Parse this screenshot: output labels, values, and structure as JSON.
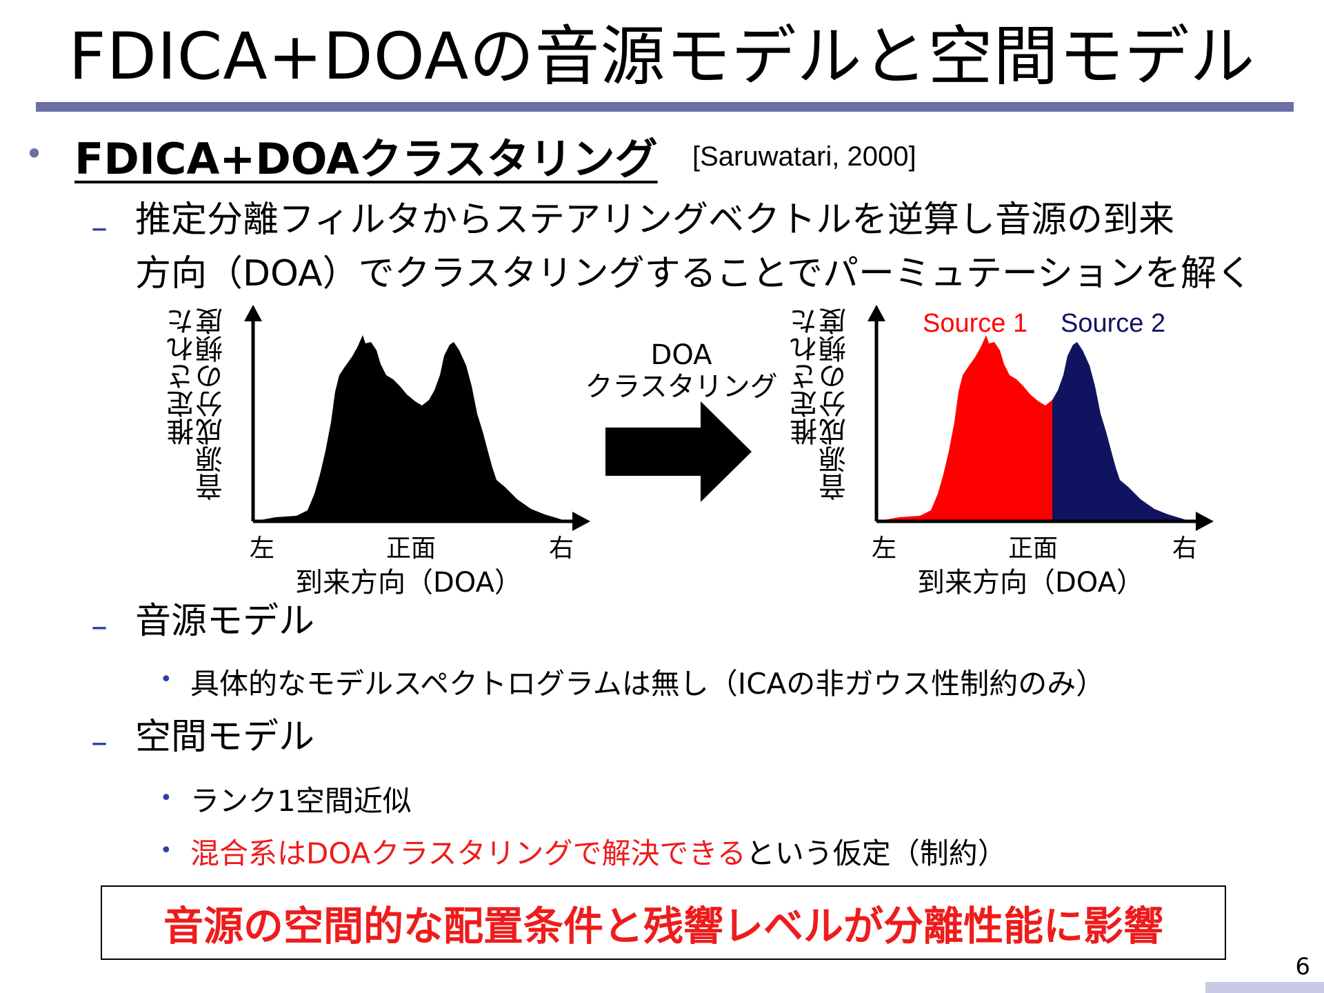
{
  "slide": {
    "title": "FDICA+DOAの音源モデルと空間モデル",
    "bullet1": "FDICA+DOAクラスタリング",
    "citation": "[Saruwatari, 2000]",
    "sub1_line1": "推定分離フィルタからステアリングベクトルを逆算し音源の到来",
    "sub1_line2": "方向（DOA）でクラスタリングすることでパーミュテーションを解く",
    "sub2": "音源モデル",
    "sub2_item1": "具体的なモデルスペクトログラムは無し（ICAの非ガウス性制約のみ）",
    "sub3": "空間モデル",
    "sub3_item1": "ランク1空間近似",
    "sub3_item2_red": "混合系はDOAクラスタリングで解決できる",
    "sub3_item2_black": "という仮定（制約）",
    "bottom_box": "音源の空間的な配置条件と残響レベルが分離性能に影響",
    "page_number": "6",
    "dash": "–",
    "bullet": "•"
  },
  "figure": {
    "ylabel_line1": "推定された",
    "ylabel_line2": "音源成分の頻度",
    "tick_left": "左",
    "tick_center": "正面",
    "tick_right": "右",
    "xlabel": "到来方向（DOA）",
    "arrow_label_line1": "DOA",
    "arrow_label_line2": "クラスタリング",
    "source1": "Source 1",
    "source2": "Source 2",
    "colors": {
      "black": "#000000",
      "source1": "#ff0000",
      "source2": "#101460",
      "accent": "#6b6fa3",
      "dash": "#2c40a8"
    }
  }
}
